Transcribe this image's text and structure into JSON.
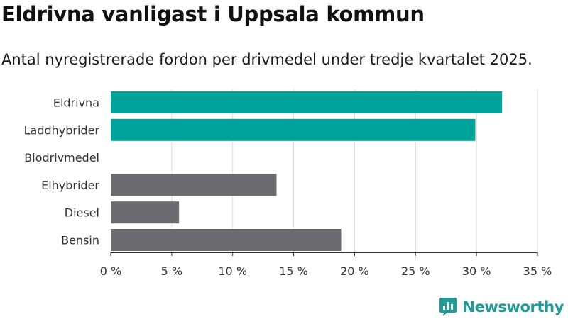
{
  "header": {
    "title": "Eldrivna vanligast i Uppsala kommun",
    "subtitle": "Antal nyregistrerade fordon per drivmedel under tredje kvartalet 2025."
  },
  "brand": {
    "name": "Newsworthy",
    "logo_icon": "bar-chart-speech-bubble-icon",
    "color": "#1f9c97"
  },
  "colors": {
    "highlight": "#00a39a",
    "default": "#6c6b70",
    "grid": "#dddddd",
    "axis": "#333333"
  },
  "chart_data": {
    "type": "bar",
    "orientation": "horizontal",
    "title": "Eldrivna vanligast i Uppsala kommun",
    "subtitle": "Antal nyregistrerade fordon per drivmedel under tredje kvartalet 2025.",
    "xlabel": "",
    "ylabel": "",
    "categories": [
      "Eldrivna",
      "Laddhybrider",
      "Biodrivmedel",
      "Elhybrider",
      "Diesel",
      "Bensin"
    ],
    "values": [
      32.1,
      29.9,
      0,
      13.6,
      5.6,
      18.9
    ],
    "unit": "%",
    "highlighted": [
      true,
      true,
      false,
      false,
      false,
      false
    ],
    "xlim": [
      0,
      35
    ],
    "xticks": [
      0,
      5,
      10,
      15,
      20,
      25,
      30,
      35
    ],
    "xtick_labels": [
      "0 %",
      "5 %",
      "10 %",
      "15 %",
      "20 %",
      "25 %",
      "30 %",
      "35 %"
    ],
    "grid": true,
    "legend": "none"
  }
}
